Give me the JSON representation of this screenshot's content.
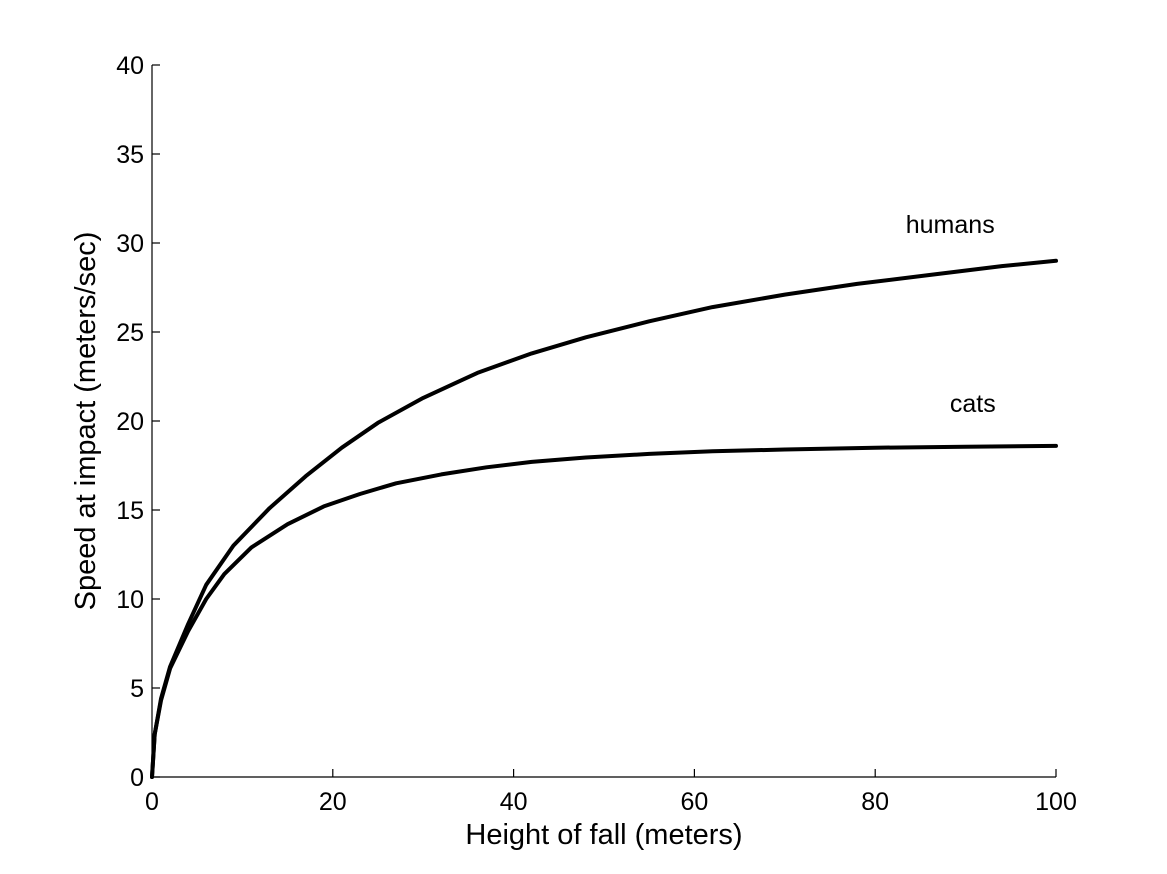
{
  "chart_data": {
    "type": "line",
    "title": "",
    "xlabel": "Height of fall (meters)",
    "ylabel": "Speed at impact (meters/sec)",
    "xlim": [
      0,
      100
    ],
    "ylim": [
      0,
      40
    ],
    "xticks": [
      0,
      20,
      40,
      60,
      80,
      100
    ],
    "yticks": [
      0,
      5,
      10,
      15,
      20,
      25,
      30,
      35,
      40
    ],
    "grid": false,
    "legend": "none",
    "line_color": "#000000",
    "series": [
      {
        "name": "humans",
        "x": [
          0,
          0.3,
          1,
          2,
          4,
          6,
          9,
          13,
          17,
          21,
          25,
          30,
          36,
          42,
          48,
          55,
          62,
          70,
          78,
          86,
          94,
          100
        ],
        "y": [
          0,
          2.4,
          4.4,
          6.2,
          8.6,
          10.8,
          13.0,
          15.1,
          16.9,
          18.5,
          19.9,
          21.3,
          22.7,
          23.8,
          24.7,
          25.6,
          26.4,
          27.1,
          27.7,
          28.2,
          28.7,
          29.0
        ]
      },
      {
        "name": "cats",
        "x": [
          0,
          0.3,
          1,
          2,
          4,
          6,
          8,
          11,
          15,
          19,
          23,
          27,
          32,
          37,
          42,
          48,
          55,
          62,
          70,
          80,
          90,
          100
        ],
        "y": [
          0,
          2.4,
          4.3,
          6.1,
          8.2,
          10.0,
          11.4,
          12.9,
          14.2,
          15.2,
          15.9,
          16.5,
          17.0,
          17.4,
          17.7,
          17.95,
          18.15,
          18.3,
          18.4,
          18.5,
          18.55,
          18.6
        ]
      }
    ]
  }
}
